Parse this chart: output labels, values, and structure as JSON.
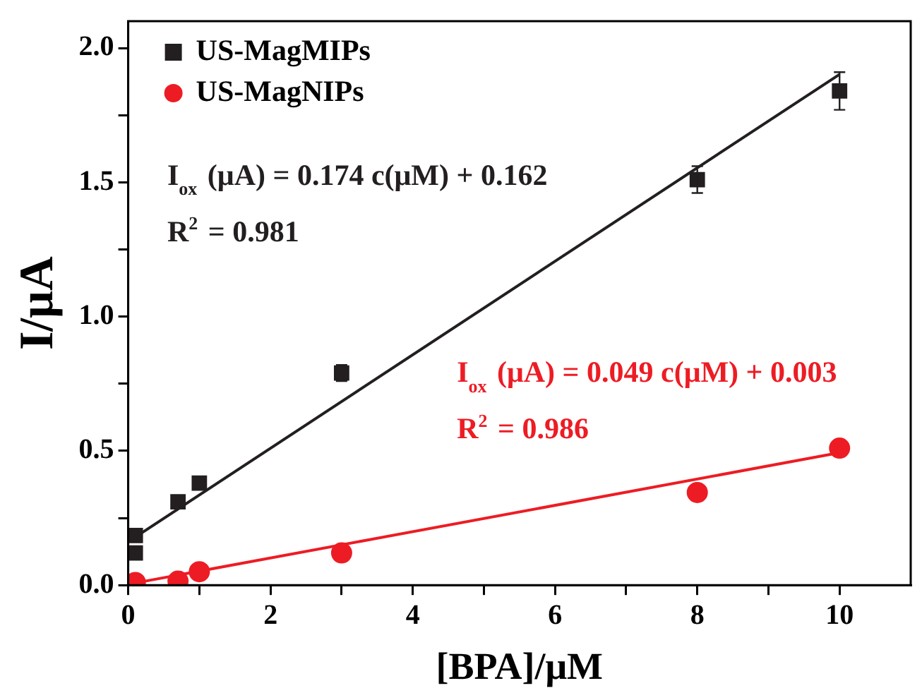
{
  "chart_data": {
    "type": "scatter",
    "xlabel": "[BPA]/μM",
    "ylabel": "I/μA",
    "xlim": [
      0,
      11
    ],
    "xticks": [
      0,
      {
        "value": 1,
        "label": null
      },
      2,
      {
        "value": 3,
        "label": null
      },
      4,
      {
        "value": 5,
        "label": null
      },
      6,
      {
        "value": 7,
        "label": null
      },
      8,
      {
        "value": 9,
        "label": null
      },
      10
    ],
    "ylim": [
      0,
      2.1
    ],
    "yticks": [
      {
        "value": 0,
        "label": "0.0"
      },
      {
        "value": 0.25,
        "label": null
      },
      0.5,
      {
        "value": 0.75,
        "label": null
      },
      {
        "value": 1,
        "label": "1.0"
      },
      {
        "value": 1.25,
        "label": null
      },
      1.5,
      {
        "value": 1.75,
        "label": null
      },
      {
        "value": 2,
        "label": "2.0"
      }
    ],
    "grid": false,
    "legend": "top left",
    "series": [
      {
        "name": "US-MagMIPs",
        "color": "#231f20",
        "marker": "square",
        "x": [
          0.1,
          0.1,
          0.7,
          1,
          3,
          8,
          10
        ],
        "values": [
          0.12,
          0.185,
          0.31,
          0.38,
          0.79,
          1.51,
          1.84
        ],
        "errors": [
          null,
          null,
          null,
          null,
          0.03,
          0.05,
          0.07
        ]
      },
      {
        "name": "US-MagNIPs",
        "color": "#ed1c24",
        "marker": "circle",
        "x": [
          0.1,
          0.7,
          1,
          3,
          8,
          10
        ],
        "values": [
          0.01,
          0.015,
          0.05,
          0.12,
          0.345,
          0.51
        ],
        "errors": [
          null,
          null,
          null,
          null,
          0.03,
          null
        ]
      },
      {
        "type": "line",
        "color": "#231f20",
        "marker": "none",
        "x": [
          0.1,
          10
        ],
        "values": [
          0.179,
          1.902
        ]
      },
      {
        "type": "line",
        "color": "#ed1c24",
        "marker": "none",
        "x": [
          0.1,
          10
        ],
        "values": [
          0.008,
          0.493
        ]
      }
    ],
    "annotations": [
      "I$_{ox}$ (μA) = 0.174 c(μM) + 0.162",
      "R$^{2}$ = 0.981",
      "I$_{ox}$ (μA) = 0.049 c(μM) + 0.003",
      "R$^{2}$ = 0.986"
    ]
  }
}
